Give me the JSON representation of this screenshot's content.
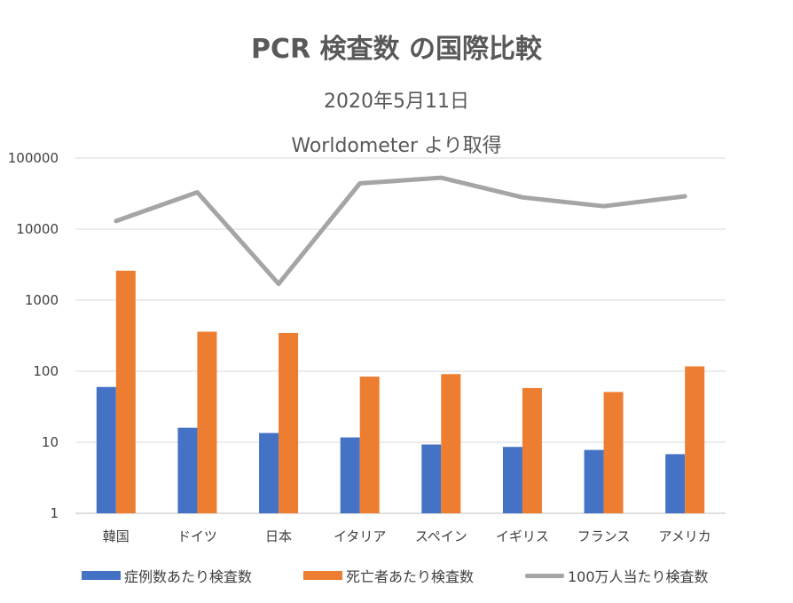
{
  "chart_data": {
    "type": "bar",
    "title": "PCR 検査数 の国際比較",
    "subtitles": [
      "2020年5月11日",
      "Worldometer より取得"
    ],
    "y_scale": "log",
    "ylim": [
      1,
      100000
    ],
    "y_ticks": [
      "100000",
      "10000",
      "1000",
      "100",
      "10",
      "1"
    ],
    "grid": true,
    "legend_position": "bottom",
    "categories": [
      "韓国",
      "ドイツ",
      "日本",
      "イタリア",
      "スペイン",
      "イギリス",
      "フランス",
      "アメリカ"
    ],
    "series": [
      {
        "name": "症例数あたり検査数",
        "kind": "bar",
        "color": "#4472C4",
        "values": [
          60,
          16,
          13.5,
          11.7,
          9.3,
          8.6,
          7.8,
          6.8
        ]
      },
      {
        "name": "死亡者あたり検査数",
        "kind": "bar",
        "color": "#ED7D31",
        "values": [
          2600,
          360,
          345,
          84,
          91,
          58,
          51,
          117
        ]
      },
      {
        "name": "100万人当たり検査数",
        "kind": "line",
        "color": "#A5A5A5",
        "values": [
          13000,
          33000,
          1700,
          44000,
          53000,
          28000,
          21000,
          29000
        ]
      }
    ]
  }
}
